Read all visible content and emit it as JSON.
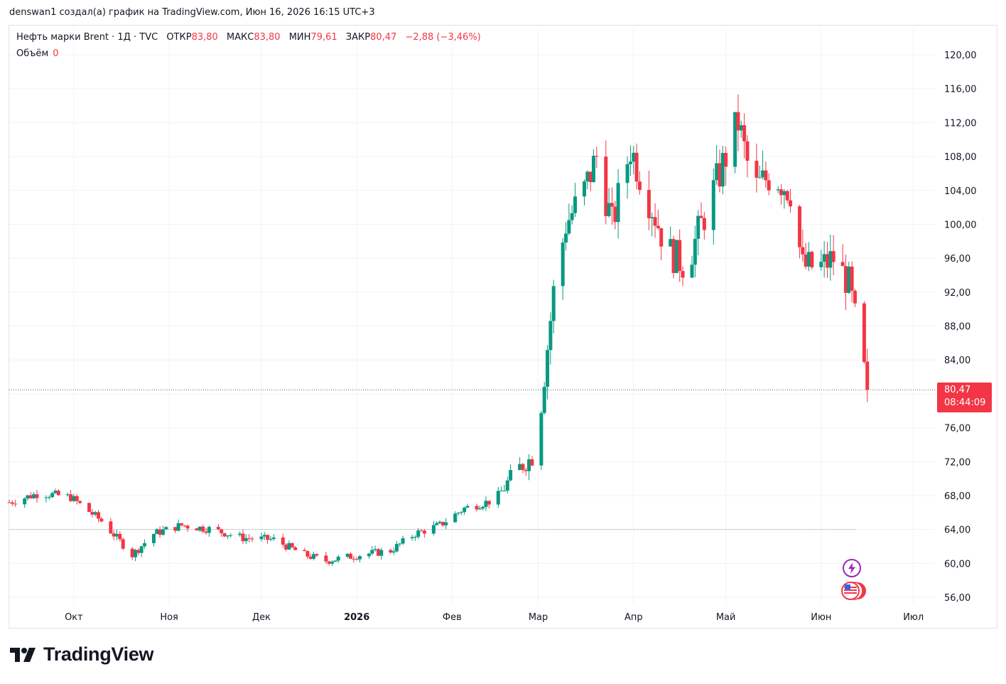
{
  "attribution": "denswan1 создал(а) график на TradingView.com, Июн 16, 2026 16:15 UTC+3",
  "legend": {
    "symbol": "Нефть марки Brent · 1Д · TVC",
    "open_label": "ОТКР",
    "open": "83,80",
    "high_label": "МАКС",
    "high": "83,80",
    "low_label": "МИН",
    "low": "79,61",
    "close_label": "ЗАКР",
    "close": "80,47",
    "change": "−2,88 (−3,46%)",
    "volume_label": "Объём",
    "volume": "0"
  },
  "price_tag": {
    "price": "80,47",
    "countdown": "08:44:09"
  },
  "logo": {
    "text": "TradingView"
  },
  "colors": {
    "up": "#089981",
    "down": "#f23645",
    "grid": "#f0f3fa",
    "text": "#131722"
  },
  "icons": [
    "lightning-event-icon",
    "us-flag-event-icon",
    "tradingview-logo-icon"
  ],
  "chart_data": {
    "type": "candlestick",
    "title": "Нефть марки Brent · 1Д · TVC",
    "xlabel": "",
    "ylabel": "",
    "ylim": [
      56,
      120
    ],
    "y_ticks": [
      "56,00",
      "60,00",
      "64,00",
      "68,00",
      "72,00",
      "76,00",
      "80,00",
      "84,00",
      "88,00",
      "92,00",
      "96,00",
      "100,00",
      "104,00",
      "108,00",
      "112,00",
      "116,00",
      "120,00"
    ],
    "x_labels": [
      {
        "label": "Окт",
        "date": "2025-10-01",
        "bold": false
      },
      {
        "label": "Ноя",
        "date": "2025-11-01",
        "bold": false
      },
      {
        "label": "Дек",
        "date": "2025-12-01",
        "bold": false
      },
      {
        "label": "2026",
        "date": "2026-01-01",
        "bold": true
      },
      {
        "label": "Фев",
        "date": "2026-02-01",
        "bold": false
      },
      {
        "label": "Мар",
        "date": "2026-03-01",
        "bold": false
      },
      {
        "label": "Апр",
        "date": "2026-04-01",
        "bold": false
      },
      {
        "label": "Май",
        "date": "2026-05-01",
        "bold": false
      },
      {
        "label": "Июн",
        "date": "2026-06-01",
        "bold": false
      },
      {
        "label": "Июл",
        "date": "2026-07-01",
        "bold": false
      }
    ],
    "x_range": [
      "2025-09-10",
      "2026-07-08"
    ],
    "last_price": 80.47,
    "last_price_label": "80,47",
    "reference_line": 64.0,
    "series": [
      {
        "name": "Нефть марки Brent",
        "ohlc_key_points": [
          [
            "2025-09-10",
            67.2
          ],
          [
            "2025-09-20",
            68.3
          ],
          [
            "2025-09-30",
            67.8
          ],
          [
            "2025-10-10",
            65.0
          ],
          [
            "2025-10-20",
            61.0
          ],
          [
            "2025-10-27",
            63.5
          ],
          [
            "2025-11-05",
            64.5
          ],
          [
            "2025-11-15",
            64.0
          ],
          [
            "2025-11-25",
            63.0
          ],
          [
            "2025-12-05",
            62.8
          ],
          [
            "2025-12-15",
            61.0
          ],
          [
            "2025-12-22",
            60.3
          ],
          [
            "2026-01-02",
            61.0
          ],
          [
            "2026-01-12",
            61.5
          ],
          [
            "2026-01-20",
            63.5
          ],
          [
            "2026-01-28",
            64.5
          ],
          [
            "2026-02-05",
            66.5
          ],
          [
            "2026-02-15",
            67.5
          ],
          [
            "2026-02-22",
            71.0
          ],
          [
            "2026-02-27",
            72.5
          ],
          [
            "2026-03-02",
            79.0
          ],
          [
            "2026-03-06",
            92.0
          ],
          [
            "2026-03-10",
            100.0
          ],
          [
            "2026-03-16",
            104.0
          ],
          [
            "2026-03-20",
            108.0
          ],
          [
            "2026-03-25",
            100.0
          ],
          [
            "2026-03-31",
            109.0
          ],
          [
            "2026-04-05",
            104.0
          ],
          [
            "2026-04-12",
            97.0
          ],
          [
            "2026-04-18",
            95.0
          ],
          [
            "2026-04-25",
            102.0
          ],
          [
            "2026-05-01",
            108.0
          ],
          [
            "2026-05-05",
            112.0
          ],
          [
            "2026-05-10",
            104.0
          ],
          [
            "2026-05-16",
            106.0
          ],
          [
            "2026-05-22",
            104.0
          ],
          [
            "2026-05-26",
            95.0
          ],
          [
            "2026-06-01",
            95.0
          ],
          [
            "2026-06-05",
            96.0
          ],
          [
            "2026-06-10",
            93.0
          ],
          [
            "2026-06-13",
            87.0
          ],
          [
            "2026-06-16",
            80.47
          ]
        ]
      }
    ]
  }
}
